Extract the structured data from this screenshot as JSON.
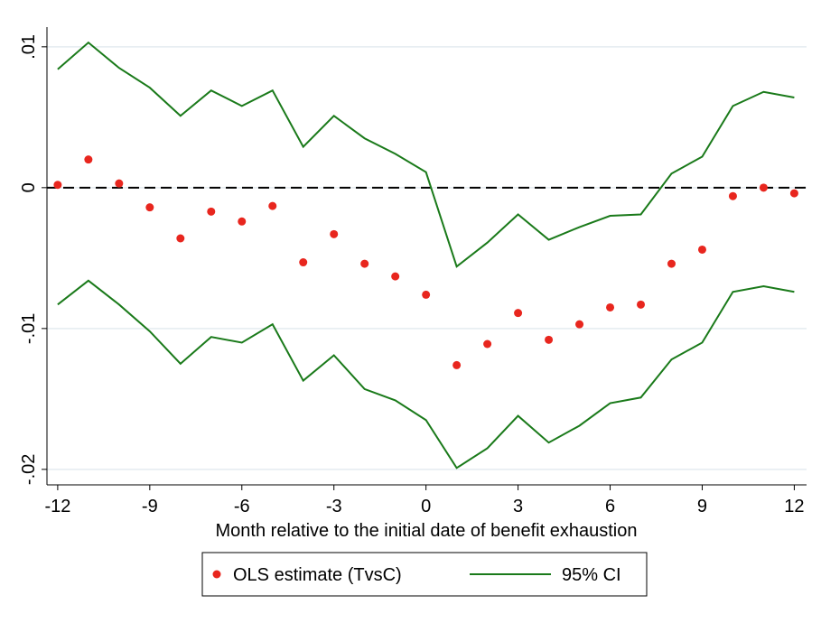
{
  "chart_data": {
    "type": "line",
    "xlabel": "Month relative to the initial date of benefit exhaustion",
    "x": [
      -12,
      -11,
      -10,
      -9,
      -8,
      -7,
      -6,
      -5,
      -4,
      -3,
      -2,
      -1,
      0,
      1,
      2,
      3,
      4,
      5,
      6,
      7,
      8,
      9,
      10,
      11,
      12
    ],
    "series": [
      {
        "name": "OLS estimate (TvsC)",
        "type": "scatter",
        "color": "#e8261e",
        "values": [
          0.0002,
          0.002,
          0.0003,
          -0.0014,
          -0.0036,
          -0.0017,
          -0.0024,
          -0.0013,
          -0.0053,
          -0.0033,
          -0.0054,
          -0.0063,
          -0.0076,
          -0.0126,
          -0.0111,
          -0.0089,
          -0.0108,
          -0.0097,
          -0.0085,
          -0.0083,
          -0.0054,
          -0.0044,
          -0.0006,
          0,
          -0.0004
        ]
      },
      {
        "name": "95% CI",
        "type": "band-lines",
        "color": "#1a7a1a",
        "values": [
          0.0084,
          0.0103,
          0.0085,
          0.0071,
          0.0051,
          0.0069,
          0.0058,
          0.0069,
          0.0029,
          0.0051,
          0.0035,
          0.0024,
          0.0011,
          -0.0056,
          -0.0039,
          -0.0019,
          -0.0037,
          -0.0028,
          -0.002,
          -0.0019,
          0.001,
          0.0022,
          0.0058,
          0.0068,
          0.0064
        ],
        "lower": [
          -0.0083,
          -0.0066,
          -0.0083,
          -0.0102,
          -0.0125,
          -0.0106,
          -0.011,
          -0.0097,
          -0.0137,
          -0.0119,
          -0.0143,
          -0.0151,
          -0.0165,
          -0.0199,
          -0.0185,
          -0.0162,
          -0.0181,
          -0.0169,
          -0.0153,
          -0.0149,
          -0.0122,
          -0.011,
          -0.0074,
          -0.007,
          -0.0074
        ]
      }
    ],
    "xlim": [
      -12.35,
      12.4
    ],
    "ylim": [
      -0.0211,
      0.0114
    ],
    "xticks": [
      -12,
      -9,
      -6,
      -3,
      0,
      3,
      6,
      9,
      12
    ],
    "yticks": [
      {
        "value": -0.02,
        "label": "-.02"
      },
      {
        "value": -0.01,
        "label": "-.01"
      },
      0,
      {
        "value": 0.01,
        "label": ".01"
      }
    ],
    "grid": true,
    "hline": 0,
    "legend": "bottom"
  }
}
